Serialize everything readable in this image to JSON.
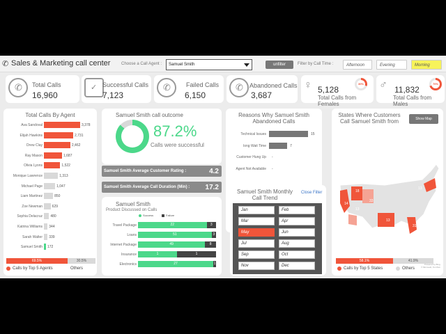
{
  "header": {
    "title": "Sales & Marketing call center",
    "agent_prompt": "Choose a Call Agent :",
    "agent_selected": "Samuel Smith",
    "unfilter_label": "unfilter",
    "time_prompt": "Filter by Call Time :",
    "time_options": [
      "Afternoon",
      "Evening",
      "Morning"
    ]
  },
  "kpis": {
    "total_calls": {
      "label": "Total Calls",
      "value": "16,960"
    },
    "successful_calls": {
      "label": "Successful Calls",
      "value": "7,123"
    },
    "failed_calls": {
      "label": "Failed Calls",
      "value": "6,150"
    },
    "abandoned_calls": {
      "label": "Abandoned Calls",
      "value": "3,687"
    },
    "female_calls": {
      "label": "Total Calls from Females",
      "value": "5,128",
      "pct": "30%"
    },
    "male_calls": {
      "label": "Total Calls from Males",
      "value": "11,832",
      "pct": "70%"
    }
  },
  "agents_panel": {
    "title": "Total Calls By Agent",
    "agents": [
      {
        "name": "Ava Sandoval",
        "value": 3378,
        "label": "3,378",
        "top": true
      },
      {
        "name": "Elijah Hawkins",
        "value": 2731,
        "label": "2,731",
        "top": true
      },
      {
        "name": "Drew Clay",
        "value": 2462,
        "label": "2,462",
        "top": true
      },
      {
        "name": "Ray Mason",
        "value": 1687,
        "label": "1,687",
        "top": true
      },
      {
        "name": "Olivia Lyons",
        "value": 1522,
        "label": "1,522",
        "top": true
      },
      {
        "name": "Monique Lawrence",
        "value": 1313,
        "label": "1,313",
        "top": false
      },
      {
        "name": "Michael Page",
        "value": 1047,
        "label": "1,047",
        "top": false
      },
      {
        "name": "Liam Martinez",
        "value": 850,
        "label": "850",
        "top": false
      },
      {
        "name": "Zoe Newman",
        "value": 629,
        "label": "629",
        "top": false
      },
      {
        "name": "Sophia Delacruz",
        "value": 480,
        "label": "480",
        "top": false
      },
      {
        "name": "Katrina Williams",
        "value": 344,
        "label": "344",
        "top": false
      },
      {
        "name": "Sarah Walter",
        "value": 339,
        "label": "339",
        "top": false
      },
      {
        "name": "Samuel Smith",
        "value": 172,
        "label": "172",
        "top": false,
        "selected": true
      }
    ],
    "split_top": "69.5%",
    "split_other": "30.5%",
    "split_top_value": 0.695,
    "legend_top": "Calls by Top 5 Agents",
    "legend_other": "Others"
  },
  "outcome": {
    "title": "Samuel Smith call outcome",
    "pct": "87.2%",
    "pct_value": 0.872,
    "subtitle": "Calls were successful"
  },
  "rating": {
    "label": "Samuel Smith Average Customer Rating :",
    "value": "4.2"
  },
  "duration": {
    "label": "Samuel Smith Average Call Duration (Min) :",
    "value": "17.2"
  },
  "products": {
    "title": "Samuel Smith",
    "subtitle": "Product Discussed on Calls",
    "legend_success": "Success",
    "legend_failure": "Failure",
    "rows": [
      {
        "name": "Travel Package",
        "success": 22,
        "failure": 3,
        "s": "22",
        "f": "3"
      },
      {
        "name": "Loans",
        "success": 51,
        "failure": 3,
        "s": "51",
        "f": "3"
      },
      {
        "name": "Internet Package",
        "success": 49,
        "failure": 8,
        "s": "49",
        "f": "8"
      },
      {
        "name": "Insurance",
        "success": 1,
        "failure": 1,
        "s": "1",
        "f": "1"
      },
      {
        "name": "Electronics",
        "success": 27,
        "failure": 1,
        "s": "27",
        "f": "1"
      }
    ]
  },
  "abandoned": {
    "title": "Reasons Why Samuel Smith Abandoned Calls",
    "rows": [
      {
        "name": "Technical Issues",
        "value": 15,
        "label": "15"
      },
      {
        "name": "long Wait Time",
        "value": 7,
        "label": "7"
      },
      {
        "name": "Customer Hung Up",
        "value": 0,
        "label": "-"
      },
      {
        "name": "Agent Not Available",
        "value": 0,
        "label": "-"
      }
    ]
  },
  "monthly": {
    "title": "Samuel Smith Monthly Call Trend",
    "close_filter": "Close Filter",
    "months": [
      "Jan",
      "Feb",
      "Mar",
      "Apr",
      "May",
      "Jun",
      "Jul",
      "Aug",
      "Sep",
      "Oct",
      "Nov",
      "Dec"
    ],
    "active": "May"
  },
  "states": {
    "title": "States Where Customers Call Samuel Smith from",
    "show_map": "Show Map",
    "labels": [
      "18",
      "14",
      "13",
      "33",
      "13",
      "13",
      "31"
    ],
    "split_top": "58.1%",
    "split_other": "41.9%",
    "split_top_value": 0.581,
    "legend_top": "Calls by Top 5 States",
    "legend_other": "Others",
    "credit_line1": "Powered by Bing",
    "credit_line2": "© Microsoft, TomTom"
  },
  "colors": {
    "accent": "#f0553a",
    "success": "#4cd88a",
    "grey": "#d9d9d9",
    "dark": "#444444"
  }
}
